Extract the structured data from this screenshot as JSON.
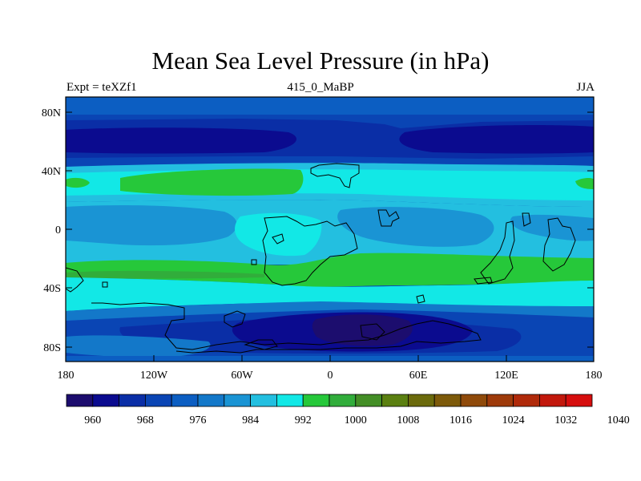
{
  "title": "Mean Sea Level Pressure (in hPa)",
  "subtitle_left": "Expt = teXZf1",
  "subtitle_center": "415_0_MaBP",
  "subtitle_right": "JJA",
  "lat_labels": [
    "80N",
    "40N",
    "0",
    "40S",
    "80S"
  ],
  "lon_labels": [
    "180",
    "120W",
    "60W",
    "0",
    "60E",
    "120E",
    "180"
  ],
  "colorbar": {
    "colors": [
      "#1c0d6e",
      "#0b0b8f",
      "#0a2ea6",
      "#0a45b4",
      "#0c5ec2",
      "#1378c9",
      "#1a94d4",
      "#23bfe0",
      "#12e8e6",
      "#26c83a",
      "#31ad3b",
      "#438e26",
      "#5b8011",
      "#6b6a0c",
      "#7d5a0a",
      "#8f4a0a",
      "#9e3a0a",
      "#b02a0a",
      "#c2180c",
      "#d60e0e"
    ],
    "tick_labels": [
      "960",
      "968",
      "976",
      "984",
      "992",
      "1000",
      "1008",
      "1016",
      "1024",
      "1032",
      "1040"
    ]
  }
}
